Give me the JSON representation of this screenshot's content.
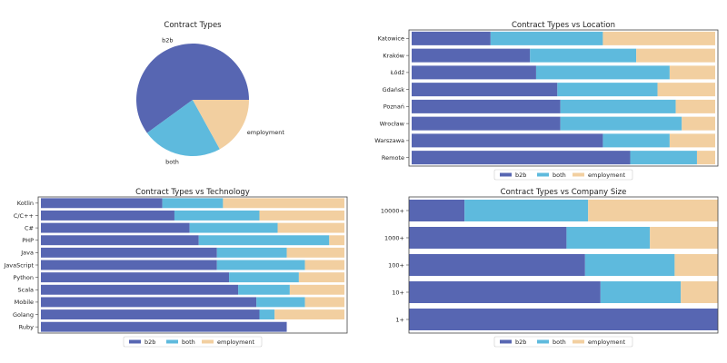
{
  "colors": {
    "b2b": "#5766b2",
    "both": "#5ebadd",
    "employment": "#f2cfa0"
  },
  "chart_data": [
    {
      "type": "pie",
      "title": "Contract Types",
      "labels": [
        "b2b",
        "both",
        "employment"
      ],
      "values": [
        60,
        23,
        17
      ]
    },
    {
      "type": "bar",
      "orientation": "horizontal",
      "stacked": true,
      "title": "Contract Types vs Location",
      "categories": [
        "Katowice",
        "Kraków",
        "Łódź",
        "Gdańsk",
        "Poznań",
        "Wrocław",
        "Warszawa",
        "Remote"
      ],
      "series": [
        {
          "name": "b2b",
          "values": [
            0.26,
            0.39,
            0.41,
            0.48,
            0.49,
            0.49,
            0.63,
            0.72
          ]
        },
        {
          "name": "both",
          "values": [
            0.37,
            0.35,
            0.44,
            0.33,
            0.38,
            0.4,
            0.22,
            0.22
          ]
        },
        {
          "name": "employment",
          "values": [
            0.37,
            0.26,
            0.15,
            0.19,
            0.13,
            0.11,
            0.15,
            0.06
          ]
        }
      ],
      "xlim": [
        0,
        1
      ],
      "legend": [
        "b2b",
        "both",
        "employment"
      ],
      "legend_position": "bottom"
    },
    {
      "type": "bar",
      "orientation": "horizontal",
      "stacked": true,
      "title": "Contract Types vs Technology",
      "categories": [
        "Kotlin",
        "C/C++",
        "C#",
        "PHP",
        "Java",
        "JavaScript",
        "Python",
        "Scala",
        "Mobile",
        "Golang",
        "Ruby"
      ],
      "series": [
        {
          "name": "b2b",
          "values": [
            0.4,
            0.44,
            0.49,
            0.52,
            0.58,
            0.58,
            0.62,
            0.65,
            0.71,
            0.72,
            0.81
          ]
        },
        {
          "name": "both",
          "values": [
            0.2,
            0.28,
            0.29,
            0.43,
            0.23,
            0.29,
            0.23,
            0.17,
            0.16,
            0.05,
            0.0
          ]
        },
        {
          "name": "employment",
          "values": [
            0.4,
            0.28,
            0.22,
            0.05,
            0.19,
            0.13,
            0.15,
            0.18,
            0.13,
            0.23,
            0.0
          ]
        }
      ],
      "xlim": [
        0,
        1
      ],
      "legend": [
        "b2b",
        "both",
        "employment"
      ],
      "legend_position": "bottom"
    },
    {
      "type": "bar",
      "orientation": "horizontal",
      "stacked": true,
      "title": "Contract Types vs Company Size",
      "categories": [
        "10000+",
        "1000+",
        "100+",
        "10+",
        "1+"
      ],
      "series": [
        {
          "name": "b2b",
          "values": [
            0.18,
            0.51,
            0.57,
            0.62,
            1.0
          ]
        },
        {
          "name": "both",
          "values": [
            0.4,
            0.27,
            0.29,
            0.26,
            0.0
          ]
        },
        {
          "name": "employment",
          "values": [
            0.42,
            0.22,
            0.14,
            0.12,
            0.0
          ]
        }
      ],
      "xlim": [
        0,
        1
      ],
      "legend": [
        "b2b",
        "both",
        "employment"
      ],
      "legend_position": "bottom"
    }
  ]
}
